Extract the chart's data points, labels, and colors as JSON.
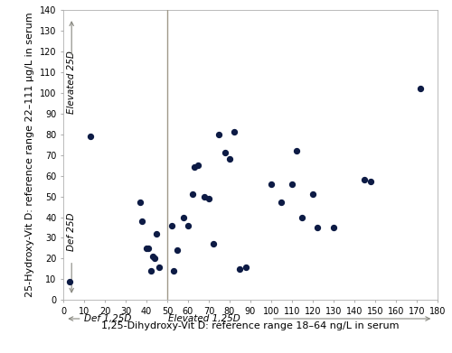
{
  "x_data": [
    3,
    13,
    37,
    38,
    40,
    41,
    42,
    43,
    44,
    45,
    46,
    52,
    53,
    55,
    58,
    60,
    62,
    63,
    65,
    68,
    70,
    72,
    75,
    78,
    80,
    82,
    85,
    88,
    100,
    105,
    110,
    112,
    115,
    120,
    122,
    130,
    145,
    148,
    172
  ],
  "y_data": [
    9,
    79,
    47,
    38,
    25,
    25,
    14,
    21,
    20,
    32,
    16,
    36,
    14,
    24,
    40,
    36,
    51,
    64,
    65,
    50,
    49,
    27,
    80,
    71,
    68,
    81,
    15,
    16,
    56,
    47,
    56,
    72,
    40,
    51,
    35,
    35,
    58,
    57,
    102
  ],
  "dot_color": "#0d1b45",
  "dot_size": 18,
  "vline_x": 50,
  "vline_color": "#a0998a",
  "arrow_color": "#888880",
  "xlim": [
    0,
    180
  ],
  "ylim": [
    0,
    140
  ],
  "xticks": [
    0,
    10,
    20,
    30,
    40,
    50,
    60,
    70,
    80,
    90,
    100,
    110,
    120,
    130,
    140,
    150,
    160,
    170,
    180
  ],
  "yticks": [
    0,
    10,
    20,
    30,
    40,
    50,
    60,
    70,
    80,
    90,
    100,
    110,
    120,
    130,
    140
  ],
  "xlabel": "1,25-Dihydroxy-Vit D: reference range 18–64 ng/L in serum",
  "ylabel": "25-Hydroxy-Vit D: reference range 22–111 µg/L in serum",
  "label_elevated_25D": "Elevated 25D",
  "label_def_25D": "Def 25D",
  "label_def_125D": "Def 1,25D",
  "label_elevated_125D": "Elevated 1,25D",
  "background_color": "#ffffff",
  "tick_fontsize": 7,
  "axis_label_fontsize": 8,
  "annotation_fontsize": 7.5
}
